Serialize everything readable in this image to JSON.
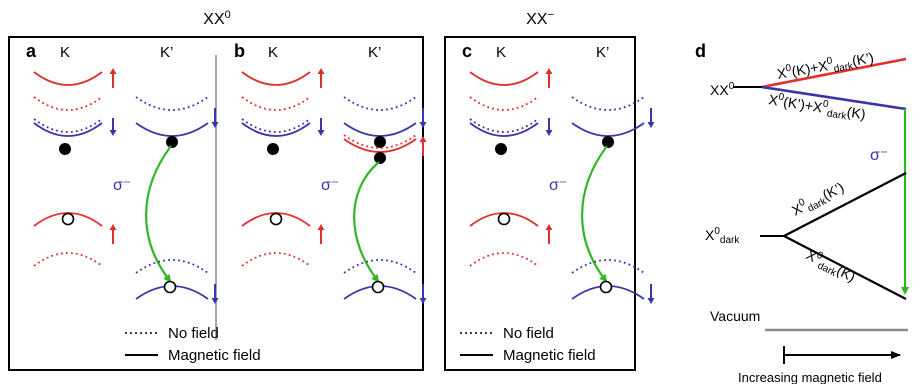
{
  "colors": {
    "red": "#e0302c",
    "blue": "#3a36a6",
    "green": "#34b526",
    "black": "#000000",
    "gray": "#8c8c8c"
  },
  "headers": {
    "xx0_base": "XX",
    "xx0_sup": "0",
    "xxm_base": "XX",
    "xxm_sup": "−"
  },
  "panels": {
    "a": "a",
    "b": "b",
    "c": "c",
    "d": "d"
  },
  "valleys": {
    "k": "K",
    "kp": "K’"
  },
  "sigma": "σ⁻",
  "legend": {
    "no_field": "No field",
    "magnetic_field": "Magnetic field"
  },
  "panel_d": {
    "xx0": "XX⁰",
    "upper_branch": "X⁰(K)+X⁰dark(K’)",
    "lower_branch": "X⁰(K’)+X⁰dark(K)",
    "dark_upper": "X⁰dark(K’)",
    "dark_lower": "X⁰dark(K)",
    "x0dark": "X⁰dark",
    "vacuum": "Vacuum",
    "axis_label": "Increasing magnetic field"
  }
}
